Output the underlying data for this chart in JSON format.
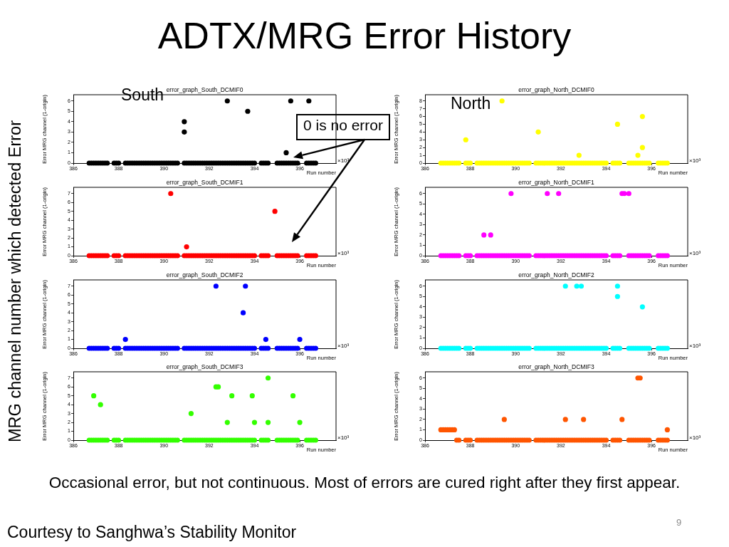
{
  "chart_data": [
    {
      "type": "other",
      "title": "ADTX/MRG Error History",
      "annotations": [
        "MRG channel number which detected Error",
        "South",
        "North",
        "0 is no error",
        "Occasional error, but not continuous. Most of errors are cured right after they first appear.",
        "Courtesy to Sanghwa’s Stability Monitor",
        "9"
      ]
    },
    {
      "type": "scatter",
      "title": "error_graph_South_DCMIF0",
      "xlabel": "Run number",
      "ylabel": "Error MRG channel (1-origin)",
      "color": "#000000",
      "marker": "circle",
      "xlim": [
        386,
        397.6
      ],
      "xticks": [
        386,
        388,
        390,
        392,
        394,
        396
      ],
      "ylim": [
        0,
        6.6
      ],
      "yticks": [
        0,
        1,
        2,
        3,
        4,
        5,
        6
      ],
      "annotations": [
        "×10³"
      ],
      "x": [
        386.7,
        386.8,
        386.9,
        387.0,
        387.1,
        387.2,
        387.3,
        387.4,
        387.5,
        387.8,
        387.9,
        388.0,
        388.3,
        388.4,
        388.5,
        388.6,
        388.7,
        388.8,
        388.9,
        389.0,
        389.1,
        389.2,
        389.3,
        389.4,
        389.5,
        389.6,
        389.7,
        389.8,
        389.9,
        390.0,
        390.1,
        390.2,
        390.3,
        390.4,
        390.5,
        390.6,
        390.9,
        391.0,
        391.1,
        391.2,
        391.3,
        391.4,
        391.5,
        391.6,
        391.7,
        391.8,
        391.9,
        392.0,
        392.1,
        392.2,
        392.3,
        392.4,
        392.5,
        392.6,
        392.7,
        392.8,
        392.9,
        393.0,
        393.1,
        393.2,
        393.3,
        393.4,
        393.5,
        393.6,
        393.7,
        393.8,
        393.9,
        394.0,
        394.3,
        394.4,
        394.5,
        394.6,
        395.0,
        395.1,
        395.2,
        395.3,
        395.4,
        395.5,
        395.6,
        395.7,
        395.8,
        395.9,
        396.3,
        396.4,
        396.5,
        396.6,
        396.7,
        390.9,
        390.9,
        392.8,
        393.7,
        395.4,
        395.6,
        396.4
      ],
      "values": [
        0,
        0,
        0,
        0,
        0,
        0,
        0,
        0,
        0,
        0,
        0,
        0,
        0,
        0,
        0,
        0,
        0,
        0,
        0,
        0,
        0,
        0,
        0,
        0,
        0,
        0,
        0,
        0,
        0,
        0,
        0,
        0,
        0,
        0,
        0,
        0,
        0,
        0,
        0,
        0,
        0,
        0,
        0,
        0,
        0,
        0,
        0,
        0,
        0,
        0,
        0,
        0,
        0,
        0,
        0,
        0,
        0,
        0,
        0,
        0,
        0,
        0,
        0,
        0,
        0,
        0,
        0,
        0,
        0,
        0,
        0,
        0,
        0,
        0,
        0,
        0,
        0,
        0,
        0,
        0,
        0,
        0,
        0,
        0,
        0,
        0,
        0,
        4,
        3,
        6,
        5,
        1,
        6,
        6
      ]
    },
    {
      "type": "scatter",
      "title": "error_graph_North_DCMIF0",
      "xlabel": "Run number",
      "ylabel": "Error MRG channel (1-origin)",
      "color": "#ffff00",
      "marker": "circle",
      "xlim": [
        386,
        397.6
      ],
      "xticks": [
        386,
        388,
        390,
        392,
        394,
        396
      ],
      "ylim": [
        0,
        8.8
      ],
      "yticks": [
        0,
        1,
        2,
        3,
        4,
        5,
        6,
        7,
        8
      ],
      "annotations": [
        "×10³"
      ],
      "x": [
        386.7,
        386.8,
        386.9,
        387.0,
        387.1,
        387.2,
        387.3,
        387.4,
        387.5,
        387.8,
        387.9,
        388.0,
        388.3,
        388.4,
        388.5,
        388.6,
        388.7,
        388.8,
        388.9,
        389.0,
        389.1,
        389.2,
        389.3,
        389.4,
        389.5,
        389.6,
        389.7,
        389.8,
        389.9,
        390.0,
        390.1,
        390.2,
        390.3,
        390.4,
        390.5,
        390.6,
        390.9,
        391.0,
        391.1,
        391.2,
        391.3,
        391.4,
        391.5,
        391.6,
        391.7,
        391.8,
        391.9,
        392.0,
        392.1,
        392.2,
        392.3,
        392.4,
        392.5,
        392.6,
        392.7,
        392.8,
        392.9,
        393.0,
        393.1,
        393.2,
        393.3,
        393.4,
        393.5,
        393.6,
        393.7,
        393.8,
        393.9,
        394.0,
        394.3,
        394.4,
        394.5,
        394.6,
        395.0,
        395.1,
        395.2,
        395.3,
        395.4,
        395.5,
        395.6,
        395.7,
        395.8,
        395.9,
        396.3,
        396.4,
        396.5,
        396.6,
        396.7,
        387.8,
        389.4,
        391.0,
        392.8,
        394.5,
        395.4,
        395.6,
        395.6
      ],
      "values": [
        0,
        0,
        0,
        0,
        0,
        0,
        0,
        0,
        0,
        0,
        0,
        0,
        0,
        0,
        0,
        0,
        0,
        0,
        0,
        0,
        0,
        0,
        0,
        0,
        0,
        0,
        0,
        0,
        0,
        0,
        0,
        0,
        0,
        0,
        0,
        0,
        0,
        0,
        0,
        0,
        0,
        0,
        0,
        0,
        0,
        0,
        0,
        0,
        0,
        0,
        0,
        0,
        0,
        0,
        0,
        0,
        0,
        0,
        0,
        0,
        0,
        0,
        0,
        0,
        0,
        0,
        0,
        0,
        0,
        0,
        0,
        0,
        0,
        0,
        0,
        0,
        0,
        0,
        0,
        0,
        0,
        0,
        0,
        0,
        0,
        0,
        0,
        3,
        8,
        4,
        1,
        5,
        1,
        6,
        2
      ]
    },
    {
      "type": "scatter",
      "title": "error_graph_South_DCMIF1",
      "xlabel": "Run number",
      "ylabel": "Error MRG channel (1-origin)",
      "color": "#ff0000",
      "marker": "circle",
      "xlim": [
        386,
        397.6
      ],
      "xticks": [
        386,
        388,
        390,
        392,
        394,
        396
      ],
      "ylim": [
        0,
        7.7
      ],
      "yticks": [
        0,
        1,
        2,
        3,
        4,
        5,
        6,
        7
      ],
      "annotations": [
        "×10³"
      ],
      "x": [
        386.7,
        386.8,
        386.9,
        387.0,
        387.1,
        387.2,
        387.3,
        387.4,
        387.5,
        387.8,
        387.9,
        388.0,
        388.3,
        388.4,
        388.5,
        388.6,
        388.7,
        388.8,
        388.9,
        389.0,
        389.1,
        389.2,
        389.3,
        389.4,
        389.5,
        389.6,
        389.7,
        389.8,
        389.9,
        390.0,
        390.1,
        390.2,
        390.3,
        390.4,
        390.5,
        390.6,
        390.9,
        391.0,
        391.1,
        391.2,
        391.3,
        391.4,
        391.5,
        391.6,
        391.7,
        391.8,
        391.9,
        392.0,
        392.1,
        392.2,
        392.3,
        392.4,
        392.5,
        392.6,
        392.7,
        392.8,
        392.9,
        393.0,
        393.1,
        393.2,
        393.3,
        393.4,
        393.5,
        393.6,
        393.7,
        393.8,
        393.9,
        394.0,
        394.3,
        394.4,
        394.5,
        394.6,
        395.0,
        395.1,
        395.2,
        395.3,
        395.4,
        395.5,
        395.6,
        395.7,
        395.8,
        395.9,
        396.3,
        396.4,
        396.5,
        396.6,
        396.7,
        390.3,
        391.0,
        394.9
      ],
      "values": [
        0,
        0,
        0,
        0,
        0,
        0,
        0,
        0,
        0,
        0,
        0,
        0,
        0,
        0,
        0,
        0,
        0,
        0,
        0,
        0,
        0,
        0,
        0,
        0,
        0,
        0,
        0,
        0,
        0,
        0,
        0,
        0,
        0,
        0,
        0,
        0,
        0,
        0,
        0,
        0,
        0,
        0,
        0,
        0,
        0,
        0,
        0,
        0,
        0,
        0,
        0,
        0,
        0,
        0,
        0,
        0,
        0,
        0,
        0,
        0,
        0,
        0,
        0,
        0,
        0,
        0,
        0,
        0,
        0,
        0,
        0,
        0,
        0,
        0,
        0,
        0,
        0,
        0,
        0,
        0,
        0,
        0,
        0,
        0,
        0,
        0,
        0,
        7,
        1,
        5
      ]
    },
    {
      "type": "scatter",
      "title": "error_graph_North_DCMIF1",
      "xlabel": "Run number",
      "ylabel": "Error MRG channel (1-origin)",
      "color": "#ff00ff",
      "marker": "circle",
      "xlim": [
        386,
        397.6
      ],
      "xticks": [
        386,
        388,
        390,
        392,
        394,
        396
      ],
      "ylim": [
        0,
        6.6
      ],
      "yticks": [
        0,
        1,
        2,
        3,
        4,
        5,
        6
      ],
      "annotations": [
        "×10³"
      ],
      "x": [
        386.7,
        386.8,
        386.9,
        387.0,
        387.1,
        387.2,
        387.3,
        387.4,
        387.5,
        387.8,
        387.9,
        388.0,
        388.3,
        388.4,
        388.5,
        388.6,
        388.7,
        388.8,
        388.9,
        389.0,
        389.1,
        389.2,
        389.3,
        389.4,
        389.5,
        389.6,
        389.7,
        389.8,
        389.9,
        390.0,
        390.1,
        390.2,
        390.3,
        390.4,
        390.5,
        390.6,
        390.9,
        391.0,
        391.1,
        391.2,
        391.3,
        391.4,
        391.5,
        391.6,
        391.7,
        391.8,
        391.9,
        392.0,
        392.1,
        392.2,
        392.3,
        392.4,
        392.5,
        392.6,
        392.7,
        392.8,
        392.9,
        393.0,
        393.1,
        393.2,
        393.3,
        393.4,
        393.5,
        393.6,
        393.7,
        393.8,
        393.9,
        394.0,
        394.3,
        394.4,
        394.5,
        394.6,
        395.0,
        395.1,
        395.2,
        395.3,
        395.4,
        395.5,
        395.6,
        395.7,
        395.8,
        395.9,
        396.3,
        396.4,
        396.5,
        396.6,
        396.7,
        388.6,
        388.9,
        389.8,
        391.4,
        391.9,
        394.7,
        394.8,
        395.0
      ],
      "values": [
        0,
        0,
        0,
        0,
        0,
        0,
        0,
        0,
        0,
        0,
        0,
        0,
        0,
        0,
        0,
        0,
        0,
        0,
        0,
        0,
        0,
        0,
        0,
        0,
        0,
        0,
        0,
        0,
        0,
        0,
        0,
        0,
        0,
        0,
        0,
        0,
        0,
        0,
        0,
        0,
        0,
        0,
        0,
        0,
        0,
        0,
        0,
        0,
        0,
        0,
        0,
        0,
        0,
        0,
        0,
        0,
        0,
        0,
        0,
        0,
        0,
        0,
        0,
        0,
        0,
        0,
        0,
        0,
        0,
        0,
        0,
        0,
        0,
        0,
        0,
        0,
        0,
        0,
        0,
        0,
        0,
        0,
        0,
        0,
        0,
        0,
        0,
        2,
        2,
        6,
        6,
        6,
        6,
        6,
        6
      ]
    },
    {
      "type": "scatter",
      "title": "error_graph_South_DCMIF2",
      "xlabel": "Run number",
      "ylabel": "Error MRG channel (1-origin)",
      "color": "#0000ff",
      "marker": "circle",
      "xlim": [
        386,
        397.6
      ],
      "xticks": [
        386,
        388,
        390,
        392,
        394,
        396
      ],
      "ylim": [
        0,
        7.7
      ],
      "yticks": [
        0,
        1,
        2,
        3,
        4,
        5,
        6,
        7
      ],
      "annotations": [
        "×10³"
      ],
      "x": [
        386.7,
        386.8,
        386.9,
        387.0,
        387.1,
        387.2,
        387.3,
        387.4,
        387.5,
        387.8,
        387.9,
        388.0,
        388.3,
        388.4,
        388.5,
        388.6,
        388.7,
        388.8,
        388.9,
        389.0,
        389.1,
        389.2,
        389.3,
        389.4,
        389.5,
        389.6,
        389.7,
        389.8,
        389.9,
        390.0,
        390.1,
        390.2,
        390.3,
        390.4,
        390.5,
        390.6,
        390.9,
        391.0,
        391.1,
        391.2,
        391.3,
        391.4,
        391.5,
        391.6,
        391.7,
        391.8,
        391.9,
        392.0,
        392.1,
        392.2,
        392.3,
        392.4,
        392.5,
        392.6,
        392.7,
        392.8,
        392.9,
        393.0,
        393.1,
        393.2,
        393.3,
        393.4,
        393.5,
        393.6,
        393.7,
        393.8,
        393.9,
        394.0,
        394.3,
        394.4,
        394.5,
        394.6,
        395.0,
        395.1,
        395.2,
        395.3,
        395.4,
        395.5,
        395.6,
        395.7,
        395.8,
        395.9,
        396.3,
        396.4,
        396.5,
        396.6,
        396.7,
        388.3,
        392.3,
        393.5,
        393.6,
        394.5,
        396.0
      ],
      "values": [
        0,
        0,
        0,
        0,
        0,
        0,
        0,
        0,
        0,
        0,
        0,
        0,
        0,
        0,
        0,
        0,
        0,
        0,
        0,
        0,
        0,
        0,
        0,
        0,
        0,
        0,
        0,
        0,
        0,
        0,
        0,
        0,
        0,
        0,
        0,
        0,
        0,
        0,
        0,
        0,
        0,
        0,
        0,
        0,
        0,
        0,
        0,
        0,
        0,
        0,
        0,
        0,
        0,
        0,
        0,
        0,
        0,
        0,
        0,
        0,
        0,
        0,
        0,
        0,
        0,
        0,
        0,
        0,
        0,
        0,
        0,
        0,
        0,
        0,
        0,
        0,
        0,
        0,
        0,
        0,
        0,
        0,
        0,
        0,
        0,
        0,
        0,
        1,
        7,
        4,
        7,
        1,
        1
      ]
    },
    {
      "type": "scatter",
      "title": "error_graph_North_DCMIF2",
      "xlabel": "Run number",
      "ylabel": "Error MRG channel (1-origin)",
      "color": "#00ffff",
      "marker": "circle",
      "xlim": [
        386,
        397.6
      ],
      "xticks": [
        386,
        388,
        390,
        392,
        394,
        396
      ],
      "ylim": [
        0,
        6.6
      ],
      "yticks": [
        0,
        1,
        2,
        3,
        4,
        5,
        6
      ],
      "annotations": [
        "×10³"
      ],
      "x": [
        386.7,
        386.8,
        386.9,
        387.0,
        387.1,
        387.2,
        387.3,
        387.4,
        387.5,
        387.8,
        387.9,
        388.0,
        388.3,
        388.4,
        388.5,
        388.6,
        388.7,
        388.8,
        388.9,
        389.0,
        389.1,
        389.2,
        389.3,
        389.4,
        389.5,
        389.6,
        389.7,
        389.8,
        389.9,
        390.0,
        390.1,
        390.2,
        390.3,
        390.4,
        390.5,
        390.6,
        390.9,
        391.0,
        391.1,
        391.2,
        391.3,
        391.4,
        391.5,
        391.6,
        391.7,
        391.8,
        391.9,
        392.0,
        392.1,
        392.2,
        392.3,
        392.4,
        392.5,
        392.6,
        392.7,
        392.8,
        392.9,
        393.0,
        393.1,
        393.2,
        393.3,
        393.4,
        393.5,
        393.6,
        393.7,
        393.8,
        393.9,
        394.0,
        394.3,
        394.4,
        394.5,
        394.6,
        395.0,
        395.1,
        395.2,
        395.3,
        395.4,
        395.5,
        395.6,
        395.7,
        395.8,
        395.9,
        396.3,
        396.4,
        396.5,
        396.6,
        396.7,
        392.2,
        392.7,
        392.9,
        394.5,
        394.5,
        395.6
      ],
      "values": [
        0,
        0,
        0,
        0,
        0,
        0,
        0,
        0,
        0,
        0,
        0,
        0,
        0,
        0,
        0,
        0,
        0,
        0,
        0,
        0,
        0,
        0,
        0,
        0,
        0,
        0,
        0,
        0,
        0,
        0,
        0,
        0,
        0,
        0,
        0,
        0,
        0,
        0,
        0,
        0,
        0,
        0,
        0,
        0,
        0,
        0,
        0,
        0,
        0,
        0,
        0,
        0,
        0,
        0,
        0,
        0,
        0,
        0,
        0,
        0,
        0,
        0,
        0,
        0,
        0,
        0,
        0,
        0,
        0,
        0,
        0,
        0,
        0,
        0,
        0,
        0,
        0,
        0,
        0,
        0,
        0,
        0,
        0,
        0,
        0,
        0,
        0,
        6,
        6,
        6,
        6,
        5,
        4
      ]
    },
    {
      "type": "scatter",
      "title": "error_graph_South_DCMIF3",
      "xlabel": "Run number",
      "ylabel": "Error MRG channel (1-origin)",
      "color": "#33ff00",
      "marker": "circle",
      "xlim": [
        386,
        397.6
      ],
      "xticks": [
        386,
        388,
        390,
        392,
        394,
        396
      ],
      "ylim": [
        0,
        7.7
      ],
      "yticks": [
        0,
        1,
        2,
        3,
        4,
        5,
        6,
        7
      ],
      "annotations": [
        "×10³"
      ],
      "x": [
        386.7,
        386.8,
        386.9,
        387.0,
        387.1,
        387.2,
        387.3,
        387.4,
        387.5,
        387.8,
        387.9,
        388.0,
        388.3,
        388.4,
        388.5,
        388.6,
        388.7,
        388.8,
        388.9,
        389.0,
        389.1,
        389.2,
        389.3,
        389.4,
        389.5,
        389.6,
        389.7,
        389.8,
        389.9,
        390.0,
        390.1,
        390.2,
        390.3,
        390.4,
        390.5,
        390.6,
        390.9,
        391.0,
        391.1,
        391.2,
        391.3,
        391.4,
        391.5,
        391.6,
        391.7,
        391.8,
        391.9,
        392.0,
        392.1,
        392.2,
        392.3,
        392.4,
        392.5,
        392.6,
        392.7,
        392.8,
        392.9,
        393.0,
        393.1,
        393.2,
        393.3,
        393.4,
        393.5,
        393.6,
        393.7,
        393.8,
        393.9,
        394.0,
        394.3,
        394.4,
        394.5,
        394.6,
        395.0,
        395.1,
        395.2,
        395.3,
        395.4,
        395.5,
        395.6,
        395.7,
        395.8,
        395.9,
        396.3,
        396.4,
        396.5,
        396.6,
        396.7,
        386.9,
        387.2,
        391.2,
        392.3,
        392.4,
        392.8,
        393.0,
        393.9,
        394.0,
        394.6,
        394.6,
        395.7,
        396.0
      ],
      "values": [
        0,
        0,
        0,
        0,
        0,
        0,
        0,
        0,
        0,
        0,
        0,
        0,
        0,
        0,
        0,
        0,
        0,
        0,
        0,
        0,
        0,
        0,
        0,
        0,
        0,
        0,
        0,
        0,
        0,
        0,
        0,
        0,
        0,
        0,
        0,
        0,
        0,
        0,
        0,
        0,
        0,
        0,
        0,
        0,
        0,
        0,
        0,
        0,
        0,
        0,
        0,
        0,
        0,
        0,
        0,
        0,
        0,
        0,
        0,
        0,
        0,
        0,
        0,
        0,
        0,
        0,
        0,
        0,
        0,
        0,
        0,
        0,
        0,
        0,
        0,
        0,
        0,
        0,
        0,
        0,
        0,
        0,
        0,
        0,
        0,
        0,
        0,
        5,
        4,
        3,
        6,
        6,
        2,
        5,
        5,
        2,
        7,
        2,
        5,
        2
      ]
    },
    {
      "type": "scatter",
      "title": "error_graph_North_DCMIF3",
      "xlabel": "Run number",
      "ylabel": "Error MRG channel (1-origin)",
      "color": "#ff5500",
      "marker": "circle",
      "xlim": [
        386,
        397.6
      ],
      "xticks": [
        386,
        388,
        390,
        392,
        394,
        396
      ],
      "ylim": [
        0,
        6.6
      ],
      "yticks": [
        0,
        1,
        2,
        3,
        4,
        5,
        6
      ],
      "annotations": [
        "×10³"
      ],
      "x": [
        387.4,
        387.5,
        387.8,
        387.9,
        388.0,
        388.3,
        388.4,
        388.5,
        388.6,
        388.7,
        388.8,
        388.9,
        389.0,
        389.1,
        389.2,
        389.3,
        389.4,
        389.5,
        389.6,
        389.7,
        389.8,
        389.9,
        390.0,
        390.1,
        390.2,
        390.3,
        390.4,
        390.5,
        390.6,
        390.9,
        391.0,
        391.1,
        391.2,
        391.3,
        391.4,
        391.5,
        391.6,
        391.7,
        391.8,
        391.9,
        392.0,
        392.1,
        392.2,
        392.3,
        392.4,
        392.5,
        392.6,
        392.7,
        392.8,
        392.9,
        393.0,
        393.1,
        393.2,
        393.3,
        393.4,
        393.5,
        393.6,
        393.7,
        393.8,
        393.9,
        394.0,
        394.3,
        394.4,
        394.5,
        394.6,
        395.0,
        395.1,
        395.2,
        395.3,
        395.4,
        395.5,
        395.6,
        395.7,
        395.8,
        395.9,
        396.3,
        396.4,
        396.5,
        396.6,
        396.7,
        386.7,
        386.8,
        386.9,
        387.0,
        387.1,
        387.2,
        387.3,
        389.5,
        392.2,
        393.0,
        394.7,
        395.4,
        395.5,
        396.7
      ],
      "values": [
        0,
        0,
        0,
        0,
        0,
        0,
        0,
        0,
        0,
        0,
        0,
        0,
        0,
        0,
        0,
        0,
        0,
        0,
        0,
        0,
        0,
        0,
        0,
        0,
        0,
        0,
        0,
        0,
        0,
        0,
        0,
        0,
        0,
        0,
        0,
        0,
        0,
        0,
        0,
        0,
        0,
        0,
        0,
        0,
        0,
        0,
        0,
        0,
        0,
        0,
        0,
        0,
        0,
        0,
        0,
        0,
        0,
        0,
        0,
        0,
        0,
        0,
        0,
        0,
        0,
        0,
        0,
        0,
        0,
        0,
        0,
        0,
        0,
        0,
        0,
        0,
        0,
        0,
        0,
        0,
        1,
        1,
        1,
        1,
        1,
        1,
        1,
        2,
        2,
        2,
        2,
        6,
        6,
        1
      ]
    }
  ]
}
